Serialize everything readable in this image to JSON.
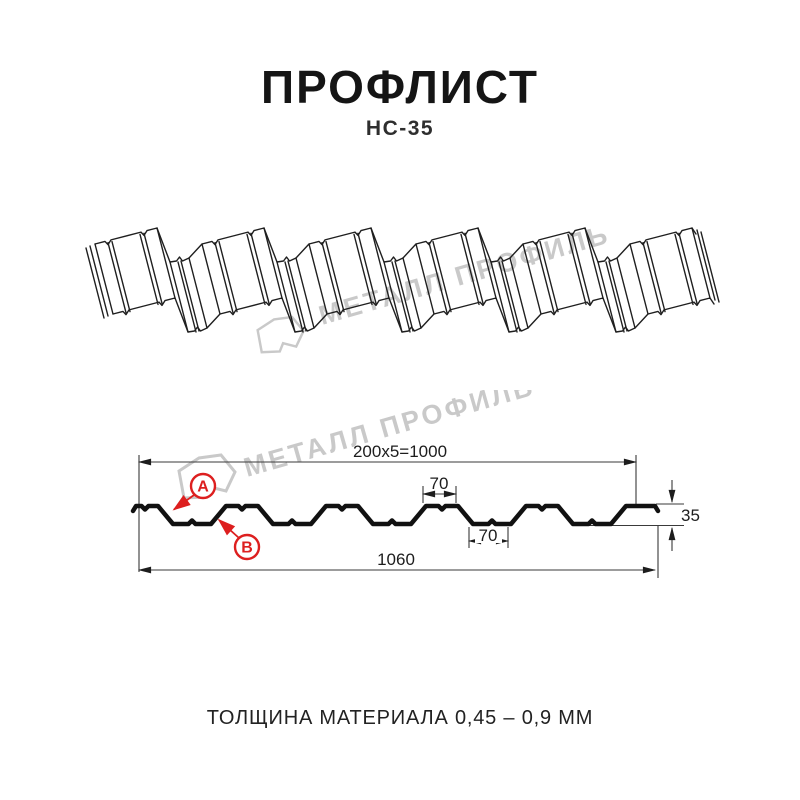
{
  "page": {
    "title": "ПРОФЛИСТ",
    "subtitle": "НС-35",
    "caption": "ТОЛЩИНА МАТЕРИАЛА 0,45 – 0,9 ММ"
  },
  "watermark": {
    "text": "МЕТАЛЛ ПРОФИЛЬ",
    "color": "#c9c9c9"
  },
  "colors": {
    "line": "#1a1a1a",
    "dim_line": "#3a3a3a",
    "accent_red": "#dd1f1f"
  },
  "diagram": {
    "dims": {
      "pitch_total": "200x5=1000",
      "crest_width": "70",
      "valley_width": "70",
      "profile_height": "35",
      "overall_width": "1060"
    },
    "labels": {
      "a": "А",
      "b": "В"
    }
  }
}
